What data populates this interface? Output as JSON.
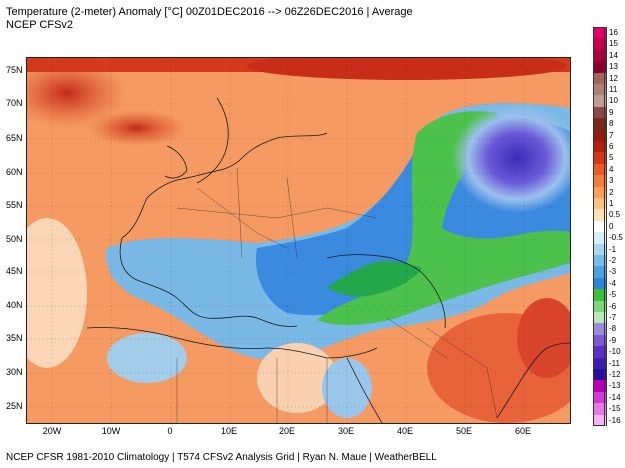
{
  "header": {
    "title": "Temperature (2-meter) Anomaly  [°C] 00Z01DEC2016 --> 06Z26DEC2016 | Average",
    "subtitle": "NCEP CFSv2"
  },
  "map": {
    "lat_labels": [
      "75N",
      "70N",
      "65N",
      "60N",
      "55N",
      "50N",
      "45N",
      "40N",
      "35N",
      "30N",
      "25N"
    ],
    "lon_labels": [
      "20W",
      "10W",
      "0",
      "10E",
      "20E",
      "30E",
      "40E",
      "50E",
      "60E"
    ]
  },
  "colorbar": {
    "labels": [
      "16",
      "15",
      "14",
      "13",
      "12",
      "11",
      "10",
      "9",
      "8",
      "7",
      "6",
      "5",
      "4",
      "3",
      "2",
      "1",
      "0.5",
      "0",
      "-0.5",
      "-1",
      "-2",
      "-3",
      "-4",
      "-5",
      "-6",
      "-7",
      "-8",
      "-9",
      "-10",
      "-11",
      "-12",
      "-13",
      "-14",
      "-15",
      "-16"
    ],
    "colors": [
      "#e2006a",
      "#c4004e",
      "#a8003c",
      "#8c002c",
      "#a0665e",
      "#b07f76",
      "#c29b92",
      "#8a4a4a",
      "#7a2a1a",
      "#8e1f0e",
      "#b3200f",
      "#d4361a",
      "#e85a2a",
      "#f27d3e",
      "#f8a05a",
      "#fbc282",
      "#fde0b8",
      "#ffffff",
      "#d7eef8",
      "#a8d8f0",
      "#78bce8",
      "#4fa0e0",
      "#2e82d8",
      "#3cbf3c",
      "#7fd67f",
      "#b8e8b8",
      "#9a8cd8",
      "#7a5cd0",
      "#5a30c8",
      "#3c1cb4",
      "#2a0ca0",
      "#b800b8",
      "#d23ad2",
      "#e47ae4",
      "#f2b4f2"
    ]
  },
  "footer": {
    "text": "NCEP CFSR 1981-2010 Climatology | T574 CFSv2 Analysis Grid | Ryan N. Maue | WeatherBELL"
  }
}
